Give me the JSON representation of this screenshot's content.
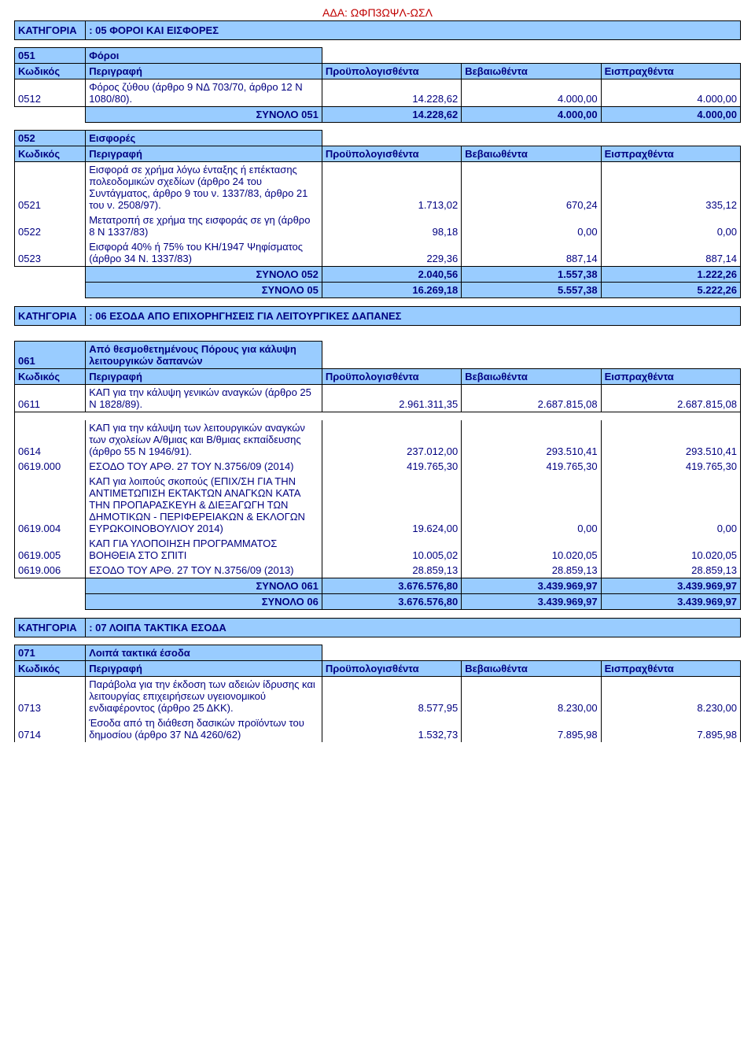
{
  "ada": "ΑΔΑ: ΩΦΠ3ΩΨΛ-ΩΣΛ",
  "colors": {
    "header_bg": "#99ccff",
    "text": "#000080",
    "border": "#000000",
    "ada": "#c00000"
  },
  "labels": {
    "katigoria": "ΚΑΤΗΓΟΡΙΑ",
    "kodikos": "Κωδικός",
    "perigrafi": "Περιγραφή",
    "proyp": "Προϋπολογισθέντα",
    "bevai": "Βεβαιωθέντα",
    "eispr": "Εισπραχθέντα"
  },
  "t05": {
    "cat": ": 05  ΦΟΡΟΙ ΚΑΙ ΕΙΣΦΟΡΕΣ",
    "g051_code": "051",
    "g051_title": "Φόροι",
    "r0512_code": "0512",
    "r0512_desc": "Φόρος ζύθου (άρθρο 9 ΝΔ 703/70, άρθρο 12 Ν 1080/80).",
    "r0512_v1": "14.228,62",
    "r0512_v2": "4.000,00",
    "r0512_v3": "4.000,00",
    "s051_label": "ΣΥΝΟΛΟ 051",
    "s051_v1": "14.228,62",
    "s051_v2": "4.000,00",
    "s051_v3": "4.000,00",
    "g052_code": "052",
    "g052_title": "Εισφορές",
    "r0521_code": "0521",
    "r0521_desc": "Εισφορά σε χρήμα λόγω ένταξης ή επέκτασης πολεοδομικών σχεδίων (άρθρο 24 του Συντάγματος, άρθρο 9 του ν. 1337/83, άρθρο 21 του ν. 2508/97).",
    "r0521_v1": "1.713,02",
    "r0521_v2": "670,24",
    "r0521_v3": "335,12",
    "r0522_code": "0522",
    "r0522_desc": "Μετατροπή σε χρήμα της εισφοράς σε γη (άρθρο 8 Ν 1337/83)",
    "r0522_v1": "98,18",
    "r0522_v2": "0,00",
    "r0522_v3": "0,00",
    "r0523_code": "0523",
    "r0523_desc": "Εισφορά 40% ή 75% του ΚΗ/1947 Ψηφίσματος (άρθρο 34 Ν. 1337/83)",
    "r0523_v1": "229,36",
    "r0523_v2": "887,14",
    "r0523_v3": "887,14",
    "s052_label": "ΣΥΝΟΛΟ 052",
    "s052_v1": "2.040,56",
    "s052_v2": "1.557,38",
    "s052_v3": "1.222,26",
    "s05_label": "ΣΥΝΟΛΟ 05",
    "s05_v1": "16.269,18",
    "s05_v2": "5.557,38",
    "s05_v3": "5.222,26"
  },
  "t06": {
    "cat": ": 06  ΕΣΟΔΑ ΑΠΟ ΕΠΙΧΟΡΗΓΗΣΕΙΣ ΓΙΑ ΛΕΙΤΟΥΡΓΙΚΕΣ ΔΑΠΑΝΕΣ",
    "g061_code": "061",
    "g061_title": "Από θεσμοθετημένους Πόρους για κάλυψη λειτουργικών δαπανών",
    "r0611_code": "0611",
    "r0611_desc": "ΚΑΠ για την κάλυψη γενικών αναγκών (άρθρο 25 Ν 1828/89).",
    "r0611_v1": "2.961.311,35",
    "r0611_v2": "2.687.815,08",
    "r0611_v3": "2.687.815,08",
    "r0614_code": "0614",
    "r0614_desc": "ΚΑΠ για την κάλυψη των λειτουργικών αναγκών των σχολείων Α/θμιας και Β/θμιας εκπαίδευσης (άρθρο 55 Ν 1946/91).",
    "r0614_v1": "237.012,00",
    "r0614_v2": "293.510,41",
    "r0614_v3": "293.510,41",
    "r0619000_code": "0619.000",
    "r0619000_desc": "ΕΣΟΔΟ ΤΟΥ ΑΡΘ. 27 ΤΟΥ Ν.3756/09 (2014)",
    "r0619000_v1": "419.765,30",
    "r0619000_v2": "419.765,30",
    "r0619000_v3": "419.765,30",
    "r0619004_code": "0619.004",
    "r0619004_desc": "ΚΑΠ για λοιπούς σκοπούς (ΕΠΙΧ/ΣΗ ΓΙΑ ΤΗΝ ΑΝΤΙΜΕΤΩΠΙΣΗ ΕΚΤΑΚΤΩΝ ΑΝΑΓΚΩΝ ΚΑΤΑ ΤΗΝ ΠΡΟΠΑΡΑΣΚΕΥΗ & ΔΙΕΞΑΓΩΓΗ ΤΩΝ ΔΗΜΟΤΙΚΩΝ - ΠΕΡΙΦΕΡΕΙΑΚΩΝ & ΕΚΛΟΓΩΝ ΕΥΡΩΚΟΙΝΟΒΟΥΛΙΟΥ 2014)",
    "r0619004_v1": "19.624,00",
    "r0619004_v2": "0,00",
    "r0619004_v3": "0,00",
    "r0619005_code": "0619.005",
    "r0619005_desc": "ΚΑΠ ΓΙΑ ΥΛΟΠΟΙΗΣΗ ΠΡΟΓΡΑΜΜΑΤΟΣ ΒΟΗΘΕΙΑ ΣΤΟ ΣΠΙΤΙ",
    "r0619005_v1": "10.005,02",
    "r0619005_v2": "10.020,05",
    "r0619005_v3": "10.020,05",
    "r0619006_code": "0619.006",
    "r0619006_desc": "ΕΣΟΔΟ ΤΟΥ ΑΡΘ. 27 ΤΟΥ Ν.3756/09 (2013)",
    "r0619006_v1": "28.859,13",
    "r0619006_v2": "28.859,13",
    "r0619006_v3": "28.859,13",
    "s061_label": "ΣΥΝΟΛΟ 061",
    "s061_v1": "3.676.576,80",
    "s061_v2": "3.439.969,97",
    "s061_v3": "3.439.969,97",
    "s06_label": "ΣΥΝΟΛΟ 06",
    "s06_v1": "3.676.576,80",
    "s06_v2": "3.439.969,97",
    "s06_v3": "3.439.969,97"
  },
  "t07": {
    "cat": ": 07  ΛΟΙΠΑ ΤΑΚΤΙΚΑ ΕΣΟΔΑ",
    "g071_code": "071",
    "g071_title": "Λοιπά τακτικά έσοδα",
    "r0713_code": "0713",
    "r0713_desc": "Παράβολα για την έκδοση των αδειών ίδρυσης και λειτουργίας επιχειρήσεων υγειονομικού ενδιαφέροντος  (άρθρο 25 ΔΚΚ).",
    "r0713_v1": "8.577,95",
    "r0713_v2": "8.230,00",
    "r0713_v3": "8.230,00",
    "r0714_code": "0714",
    "r0714_desc": "Έσοδα από τη διάθεση δασικών προϊόντων του δημοσίου (άρθρο 37 ΝΔ 4260/62)",
    "r0714_v1": "1.532,73",
    "r0714_v2": "7.895,98",
    "r0714_v3": "7.895,98"
  }
}
